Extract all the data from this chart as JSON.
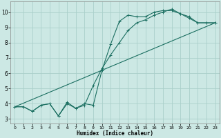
{
  "bg_color": "#cce8e4",
  "grid_color": "#aacfca",
  "line_color": "#1a6e60",
  "xlabel": "Humidex (Indice chaleur)",
  "xlim": [
    -0.5,
    23.5
  ],
  "ylim": [
    2.7,
    10.7
  ],
  "yticks": [
    3,
    4,
    5,
    6,
    7,
    8,
    9,
    10
  ],
  "xticks": [
    0,
    1,
    2,
    3,
    4,
    5,
    6,
    7,
    8,
    9,
    10,
    11,
    12,
    13,
    14,
    15,
    16,
    17,
    18,
    19,
    20,
    21,
    22,
    23
  ],
  "line1_x": [
    0,
    1,
    2,
    3,
    4,
    5,
    6,
    7,
    8,
    9,
    10,
    11,
    12,
    13,
    14,
    15,
    16,
    17,
    18,
    19,
    20,
    21,
    22,
    23
  ],
  "line1_y": [
    3.8,
    3.8,
    3.5,
    3.9,
    4.0,
    3.2,
    4.0,
    3.7,
    4.0,
    3.9,
    6.2,
    7.9,
    9.4,
    9.8,
    9.7,
    9.7,
    10.0,
    10.1,
    10.1,
    9.9,
    9.7,
    9.3,
    9.3,
    9.3
  ],
  "line2_x": [
    0,
    1,
    2,
    3,
    4,
    5,
    6,
    7,
    8,
    9,
    10,
    11,
    12,
    13,
    14,
    15,
    16,
    17,
    18,
    19,
    20,
    21,
    22,
    23
  ],
  "line2_y": [
    3.8,
    3.8,
    3.5,
    3.9,
    4.0,
    3.2,
    4.1,
    3.7,
    3.9,
    5.2,
    6.3,
    7.2,
    8.0,
    8.8,
    9.3,
    9.5,
    9.8,
    10.0,
    10.2,
    9.9,
    9.6,
    9.3,
    9.3,
    9.3
  ],
  "line3_x": [
    0,
    23
  ],
  "line3_y": [
    3.8,
    9.3
  ]
}
